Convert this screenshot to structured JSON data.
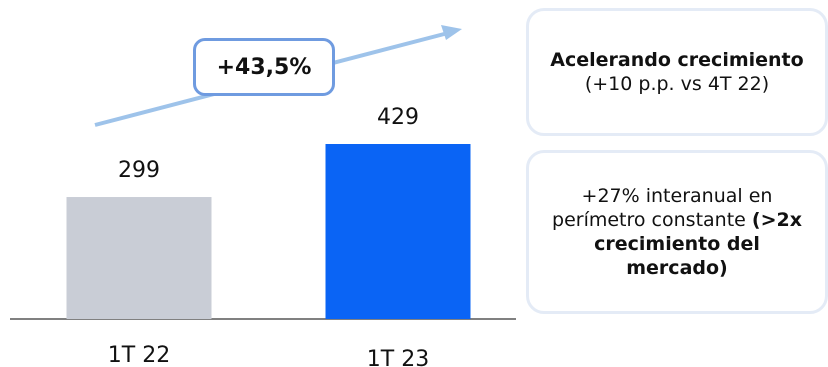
{
  "chart_data": {
    "type": "bar",
    "categories": [
      "1T 22",
      "1T 23"
    ],
    "values": [
      299,
      429
    ],
    "value_labels": [
      "299",
      "429"
    ],
    "colors": [
      "#c9cdd6",
      "#0a64f5"
    ],
    "ylim": [
      0,
      500
    ],
    "growth_label": "+43,5%"
  },
  "callouts": {
    "first": {
      "bold": "Acelerando crecimiento",
      "rest": " (+10 p.p. vs 4T 22)"
    },
    "second": {
      "plain": "+27% interanual en perímetro constante ",
      "bold": "(>2x crecimiento del mercado)"
    }
  },
  "colors": {
    "arrow": "#9ec3ea",
    "growth_border": "#6f9be0",
    "callout_border": "#e4ebf6",
    "axis": "#808080"
  }
}
